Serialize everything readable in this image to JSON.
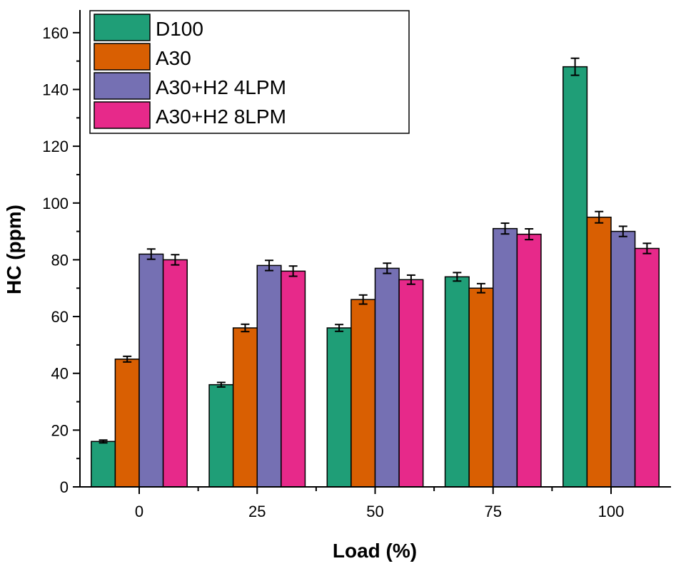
{
  "chart_data": {
    "type": "bar",
    "title": "",
    "xlabel": "Load (%)",
    "ylabel": "HC (ppm)",
    "categories": [
      "0",
      "25",
      "50",
      "75",
      "100"
    ],
    "ylim": [
      0,
      168
    ],
    "yticks": [
      0,
      20,
      40,
      60,
      80,
      100,
      120,
      140,
      160
    ],
    "legend_position": "top-left",
    "series": [
      {
        "name": "D100",
        "color": "#1f9e77",
        "values": [
          16,
          36,
          56,
          74,
          148
        ],
        "errors": [
          0.5,
          0.8,
          1.2,
          1.5,
          3
        ]
      },
      {
        "name": "A30",
        "color": "#d95f02",
        "values": [
          45,
          56,
          66,
          70,
          95
        ],
        "errors": [
          1,
          1.3,
          1.6,
          1.6,
          2
        ]
      },
      {
        "name": "A30+H2 4LPM",
        "color": "#7570b3",
        "values": [
          82,
          78,
          77,
          91,
          90
        ],
        "errors": [
          1.8,
          1.8,
          1.8,
          1.9,
          1.8
        ]
      },
      {
        "name": "A30+H2 8LPM",
        "color": "#e7298a",
        "values": [
          80,
          76,
          73,
          89,
          84
        ],
        "errors": [
          1.8,
          1.8,
          1.6,
          1.9,
          1.8
        ]
      }
    ]
  }
}
